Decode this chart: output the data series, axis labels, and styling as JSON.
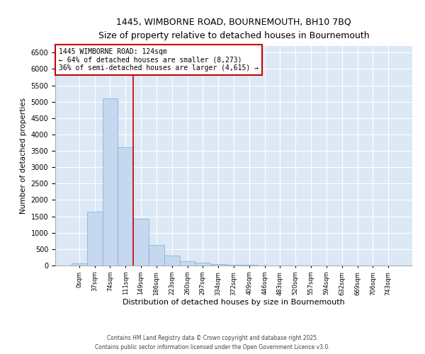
{
  "title_line1": "1445, WIMBORNE ROAD, BOURNEMOUTH, BH10 7BQ",
  "title_line2": "Size of property relative to detached houses in Bournemouth",
  "xlabel": "Distribution of detached houses by size in Bournemouth",
  "ylabel": "Number of detached properties",
  "bar_color": "#c5d8f0",
  "bar_edge_color": "#7aadd4",
  "background_color": "#dce8f5",
  "grid_color": "#ffffff",
  "annotation_text": "1445 WIMBORNE ROAD: 124sqm\n← 64% of detached houses are smaller (8,273)\n36% of semi-detached houses are larger (4,615) →",
  "vline_x": 3.5,
  "vline_color": "#cc0000",
  "annotation_box_color": "#ffffff",
  "annotation_box_edge_color": "#cc0000",
  "categories": [
    "0sqm",
    "37sqm",
    "74sqm",
    "111sqm",
    "149sqm",
    "186sqm",
    "223sqm",
    "260sqm",
    "297sqm",
    "334sqm",
    "372sqm",
    "409sqm",
    "446sqm",
    "483sqm",
    "520sqm",
    "557sqm",
    "594sqm",
    "632sqm",
    "669sqm",
    "706sqm",
    "743sqm"
  ],
  "values": [
    70,
    1650,
    5100,
    3620,
    1420,
    620,
    310,
    130,
    80,
    45,
    30,
    15,
    8,
    5,
    3,
    2,
    1,
    1,
    0,
    0,
    0
  ],
  "ylim": [
    0,
    6700
  ],
  "yticks": [
    0,
    500,
    1000,
    1500,
    2000,
    2500,
    3000,
    3500,
    4000,
    4500,
    5000,
    5500,
    6000,
    6500
  ],
  "footer_line1": "Contains HM Land Registry data © Crown copyright and database right 2025.",
  "footer_line2": "Contains public sector information licensed under the Open Government Licence v3.0.",
  "fig_width": 6.0,
  "fig_height": 5.0,
  "fig_dpi": 100
}
